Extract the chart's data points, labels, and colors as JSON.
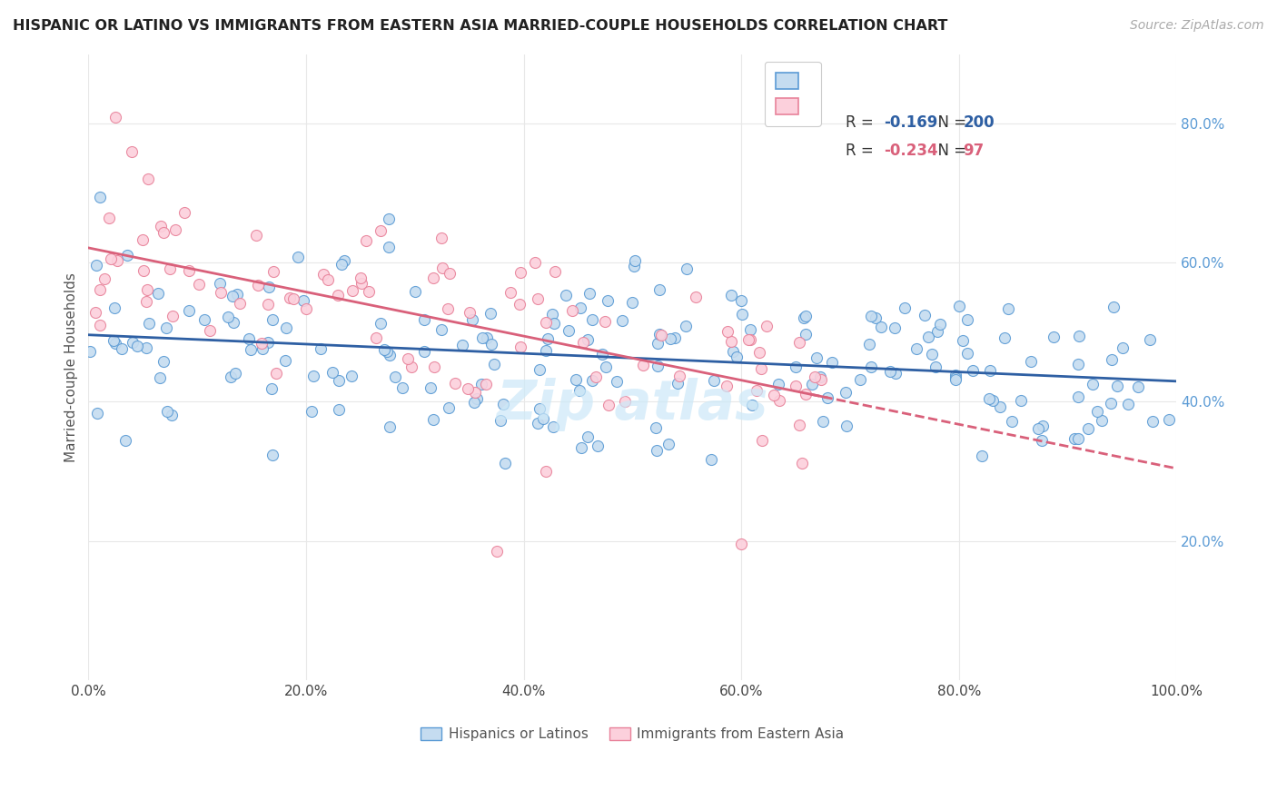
{
  "title": "HISPANIC OR LATINO VS IMMIGRANTS FROM EASTERN ASIA MARRIED-COUPLE HOUSEHOLDS CORRELATION CHART",
  "source": "Source: ZipAtlas.com",
  "ylabel": "Married-couple Households",
  "x_min": 0.0,
  "x_max": 1.0,
  "y_min": 0.0,
  "y_max": 0.9,
  "x_ticks": [
    0.0,
    0.2,
    0.4,
    0.6,
    0.8,
    1.0
  ],
  "y_ticks": [
    0.2,
    0.4,
    0.6,
    0.8
  ],
  "blue_R": "-0.169",
  "blue_N": "200",
  "pink_R": "-0.234",
  "pink_N": "97",
  "blue_dot_fill": "#c5dcf0",
  "blue_dot_edge": "#5b9bd5",
  "pink_dot_fill": "#fcd0dc",
  "pink_dot_edge": "#e8829a",
  "blue_line_color": "#2e5fa3",
  "pink_line_color": "#d9607a",
  "legend_R_blue": "#2e5fa3",
  "legend_N_blue": "#2e5fa3",
  "legend_R_pink": "#d9607a",
  "legend_N_pink": "#d9607a",
  "watermark_color": "#cce8f8",
  "background_color": "#ffffff",
  "grid_color": "#e8e8e8",
  "tick_color_y": "#5b9bd5",
  "tick_color_x": "#444444"
}
